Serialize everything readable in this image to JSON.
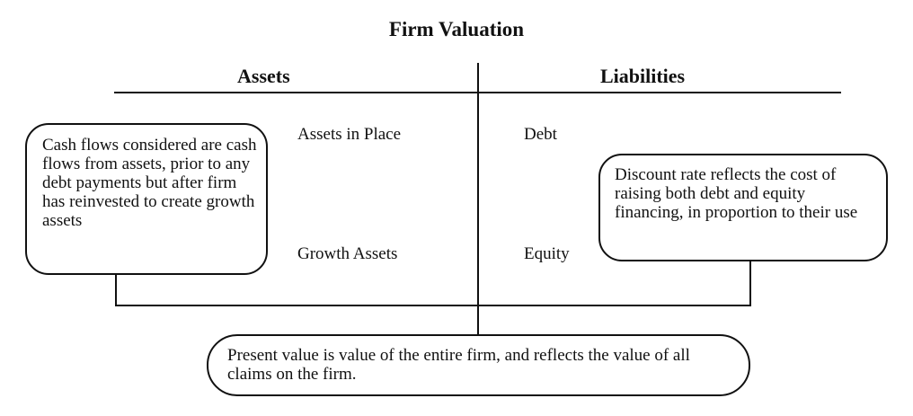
{
  "title": "Firm Valuation",
  "headers": {
    "left": "Assets",
    "right": "Liabilities"
  },
  "labels": {
    "assets_in_place": "Assets in Place",
    "growth_assets": "Growth Assets",
    "debt": "Debt",
    "equity": "Equity"
  },
  "callouts": {
    "cash_flows": "Cash flows considered are cash flows from assets, prior to any debt payments but after firm has reinvested to create growth assets",
    "discount_rate": "Discount rate reflects the cost of raising both debt and equity financing, in proportion to their use",
    "present_value": "Present value is value of the entire firm, and reflects the value of all claims on the firm."
  }
}
